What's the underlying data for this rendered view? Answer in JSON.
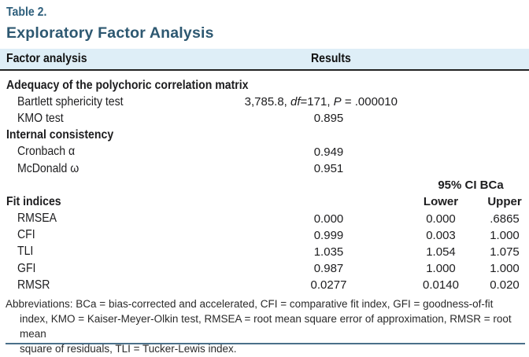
{
  "title": {
    "table_label": "Table 2.",
    "heading": "Exploratory Factor Analysis"
  },
  "colors": {
    "accent_table_label": "#2e5f7c",
    "accent_title": "#2d5871",
    "header_band_bg": "#deeef7",
    "header_rule": "#222222",
    "bottom_rule": "#4a708a",
    "body_text": "#1d1d1f"
  },
  "table": {
    "header": {
      "factor": "Factor analysis",
      "results": "Results"
    },
    "ci": {
      "title": "95% CI BCa",
      "lower_label": "Lower",
      "upper_label": "Upper"
    },
    "rows": [
      {
        "type": "section",
        "label": "Adequacy of the polychoric correlation matrix"
      },
      {
        "type": "item",
        "label": "Bartlett sphericity test",
        "result": {
          "pre": "3,785.8, ",
          "italic1": "df",
          "mid": "=171, ",
          "italic2": "P",
          "post": " = .000010"
        }
      },
      {
        "type": "item",
        "label": "KMO test",
        "result": "0.895"
      },
      {
        "type": "section",
        "label": "Internal consistency"
      },
      {
        "type": "item",
        "label": "Cronbach α",
        "result": "0.949"
      },
      {
        "type": "item",
        "label": "McDonald ω",
        "result": "0.951"
      },
      {
        "type": "section",
        "label": "Fit indices"
      },
      {
        "type": "item",
        "label": "RMSEA",
        "result": "0.000",
        "lower": "0.000",
        "upper": ".6865"
      },
      {
        "type": "item",
        "label": "CFI",
        "result": "0.999",
        "lower": "0.003",
        "upper": "1.000"
      },
      {
        "type": "item",
        "label": "TLI",
        "result": "1.035",
        "lower": "1.054",
        "upper": "1.075"
      },
      {
        "type": "item",
        "label": "GFI",
        "result": "0.987",
        "lower": "1.000",
        "upper": "1.000"
      },
      {
        "type": "item",
        "label": "RMSR",
        "result": "0.0277",
        "lower": "0.0140",
        "upper": "0.020"
      }
    ]
  },
  "footnote": {
    "lines": [
      "Abbreviations: BCa = bias-corrected and accelerated, CFI = comparative fit index, GFI = goodness-of-fit",
      "index, KMO = Kaiser-Meyer-Olkin test, RMSEA = root mean square error of approximation, RMSR = root mean",
      "square of residuals, TLI = Tucker-Lewis index."
    ]
  }
}
